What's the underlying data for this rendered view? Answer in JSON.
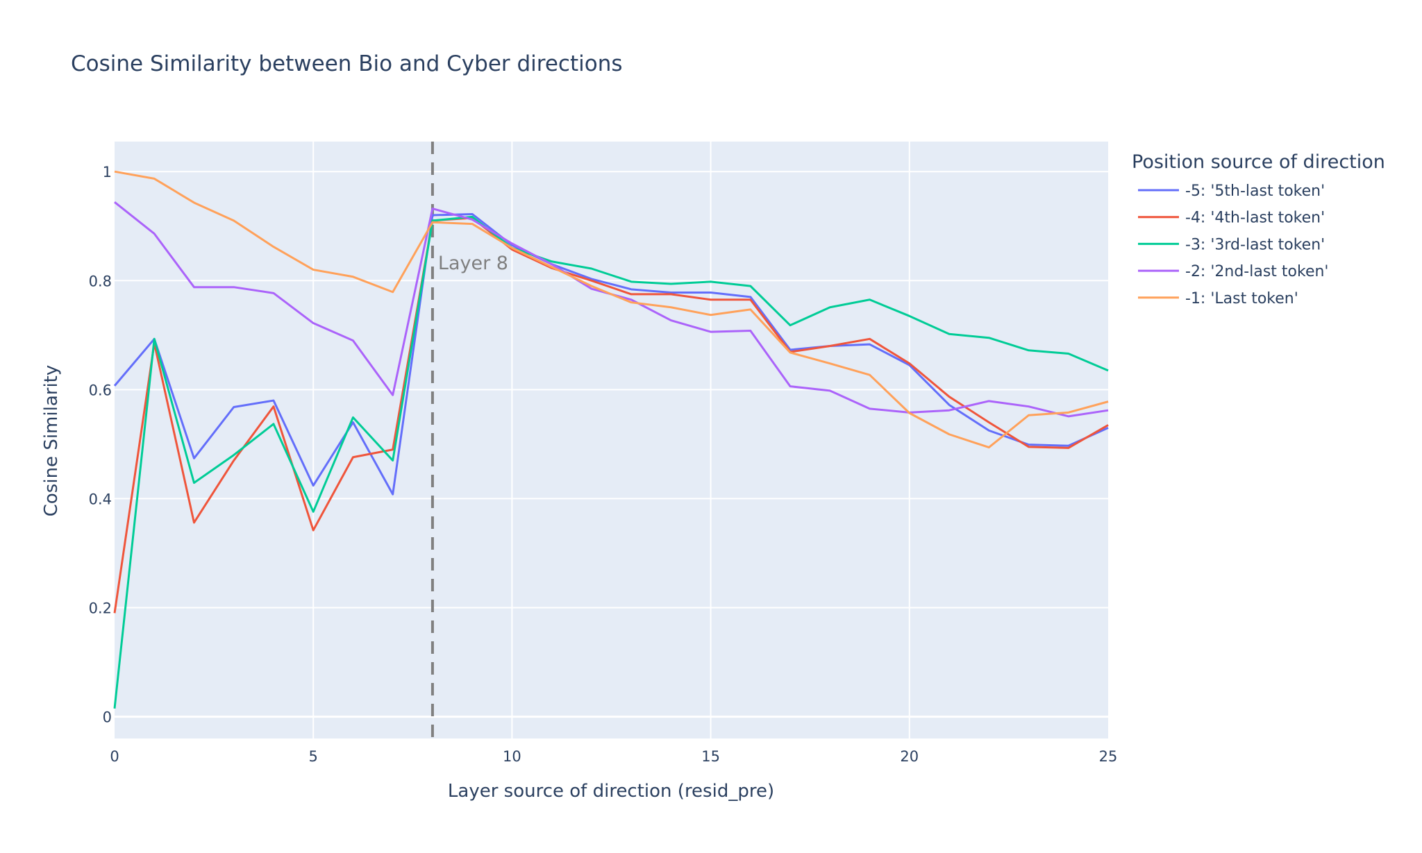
{
  "chart_data": {
    "type": "line",
    "title": "Cosine Similarity between Bio and Cyber directions",
    "xlabel": "Layer source of direction (resid_pre)",
    "ylabel": "Cosine Similarity",
    "xlim": [
      0,
      25
    ],
    "ylim": [
      -0.04,
      1.055
    ],
    "xticks": [
      0,
      5,
      10,
      15,
      20,
      25
    ],
    "yticks": [
      0,
      0.2,
      0.4,
      0.6,
      0.8,
      1
    ],
    "ytick_labels": [
      "0",
      "0.2",
      "0.4",
      "0.6",
      "0.8",
      "1"
    ],
    "grid": true,
    "background_color": "#e5ecf6",
    "legend_title": "Position source of direction",
    "legend_position": "right",
    "x": [
      0,
      1,
      2,
      3,
      4,
      5,
      6,
      7,
      8,
      9,
      10,
      11,
      12,
      13,
      14,
      15,
      16,
      17,
      18,
      19,
      20,
      21,
      22,
      23,
      24,
      25
    ],
    "series": [
      {
        "name": "-5: '5th-last token'",
        "color": "#636efa",
        "values": [
          0.607,
          0.693,
          0.474,
          0.568,
          0.58,
          0.424,
          0.54,
          0.408,
          0.92,
          0.922,
          0.865,
          0.83,
          0.803,
          0.784,
          0.778,
          0.778,
          0.77,
          0.673,
          0.68,
          0.683,
          0.645,
          0.572,
          0.525,
          0.499,
          0.497,
          0.53
        ]
      },
      {
        "name": "-4: '4th-last token'",
        "color": "#ef553b",
        "values": [
          0.19,
          0.685,
          0.356,
          0.47,
          0.569,
          0.342,
          0.476,
          0.49,
          0.91,
          0.915,
          0.857,
          0.823,
          0.8,
          0.775,
          0.775,
          0.765,
          0.765,
          0.669,
          0.68,
          0.693,
          0.648,
          0.587,
          0.54,
          0.495,
          0.493,
          0.535
        ]
      },
      {
        "name": "-3: '3rd-last token'",
        "color": "#00cc96",
        "values": [
          0.015,
          0.693,
          0.429,
          0.48,
          0.537,
          0.376,
          0.549,
          0.47,
          0.91,
          0.917,
          0.86,
          0.835,
          0.822,
          0.798,
          0.794,
          0.798,
          0.79,
          0.718,
          0.751,
          0.765,
          0.735,
          0.702,
          0.695,
          0.672,
          0.666,
          0.635
        ]
      },
      {
        "name": "-2: '2nd-last token'",
        "color": "#ab63fa",
        "values": [
          0.944,
          0.886,
          0.788,
          0.788,
          0.777,
          0.722,
          0.69,
          0.59,
          0.932,
          0.912,
          0.868,
          0.83,
          0.785,
          0.765,
          0.727,
          0.706,
          0.708,
          0.606,
          0.598,
          0.565,
          0.558,
          0.562,
          0.579,
          0.569,
          0.551,
          0.562
        ]
      },
      {
        "name": "-1: 'Last token'",
        "color": "#ffa15a",
        "values": [
          1.0,
          0.987,
          0.943,
          0.91,
          0.862,
          0.82,
          0.807,
          0.779,
          0.907,
          0.904,
          0.86,
          0.825,
          0.79,
          0.76,
          0.751,
          0.737,
          0.747,
          0.668,
          0.648,
          0.627,
          0.557,
          0.518,
          0.494,
          0.553,
          0.558,
          0.578
        ]
      }
    ],
    "annotations": [
      {
        "type": "vline",
        "x": 8,
        "style": "dashed",
        "color": "#808080",
        "text": "Layer 8"
      }
    ]
  }
}
